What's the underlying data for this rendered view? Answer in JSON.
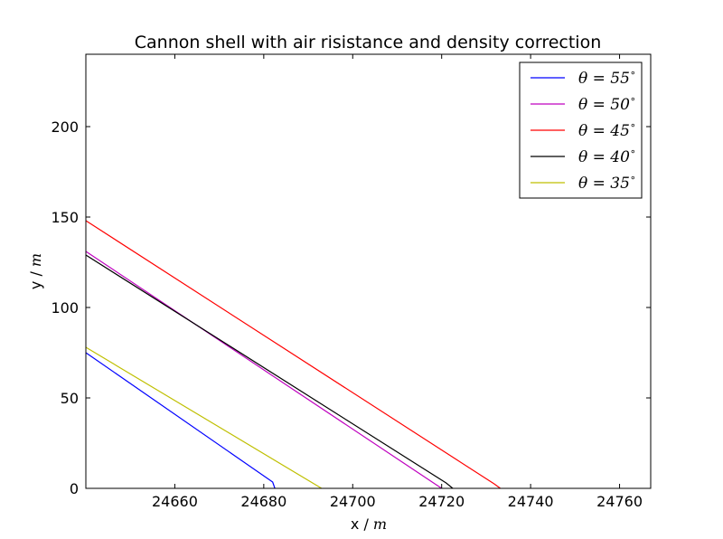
{
  "chart_data": {
    "type": "line",
    "title": "Cannon shell with air risistance and density correction",
    "xlabel": "x / ",
    "xlabel_unit": "m",
    "ylabel": "y / ",
    "ylabel_unit": "m",
    "xlim": [
      24640,
      24767
    ],
    "ylim": [
      0,
      240
    ],
    "xticks": [
      24660,
      24680,
      24700,
      24720,
      24740,
      24760
    ],
    "yticks": [
      0,
      50,
      100,
      150,
      200
    ],
    "grid": false,
    "legend_position": "top-right",
    "series": [
      {
        "name": "θ = 55°",
        "label_main": "θ = 55",
        "color": "#0000ff",
        "points": [
          [
            24640,
            75
          ],
          [
            24682,
            3.5
          ],
          [
            24682.5,
            0
          ]
        ]
      },
      {
        "name": "θ = 50°",
        "label_main": "θ = 50",
        "color": "#bf00bf",
        "points": [
          [
            24640,
            131
          ],
          [
            24720,
            0
          ]
        ]
      },
      {
        "name": "θ = 45°",
        "label_main": "θ = 45",
        "color": "#ff0000",
        "points": [
          [
            24640,
            148
          ],
          [
            24731.8,
            2.5
          ],
          [
            24733.2,
            0
          ]
        ]
      },
      {
        "name": "θ = 40°",
        "label_main": "θ = 40",
        "color": "#000000",
        "points": [
          [
            24640,
            129
          ],
          [
            24721,
            3
          ],
          [
            24722.5,
            0
          ]
        ]
      },
      {
        "name": "θ = 35°",
        "label_main": "θ = 35",
        "color": "#bfbf00",
        "points": [
          [
            24640,
            78
          ],
          [
            24693,
            0
          ]
        ]
      }
    ]
  }
}
